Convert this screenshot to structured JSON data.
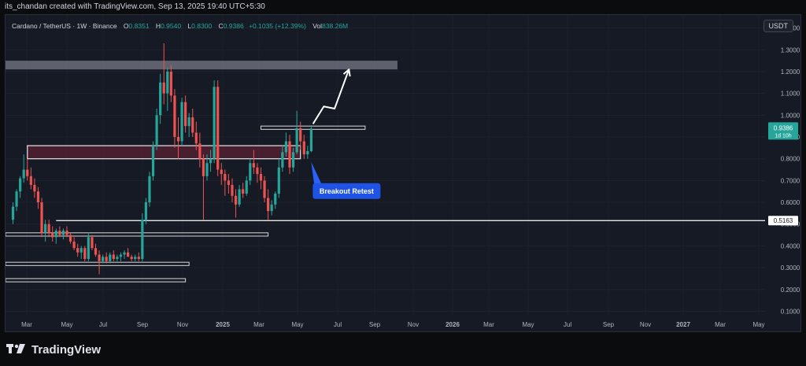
{
  "credit": "its_chandan created with TradingView.com, Sep 13, 2025 19:40 UTC+5:30",
  "legend": {
    "symbol": "Cardano / TetherUS · 1W · Binance",
    "open_label": "O",
    "open": "0.8351",
    "high_label": "H",
    "high": "0.9540",
    "low_label": "L",
    "low": "0.8300",
    "close_label": "C",
    "close": "0.9386",
    "change": "+0.1035 (+12.39%)",
    "vol_label": "Vol",
    "vol": "838.26M"
  },
  "currency_button": "USDT",
  "last_price": {
    "value": "0.9386",
    "countdown": "1d 10h"
  },
  "level_label": "0.5163",
  "annotation": "Breakout Retest",
  "footer_brand": "TradingView",
  "colors": {
    "up": "#26a69a",
    "down": "#ef5350",
    "background": "#161a25"
  },
  "chart_data": {
    "type": "candlestick",
    "symbol": "ADA/USDT",
    "y_ticks": [
      "1.4000",
      "1.3000",
      "1.2000",
      "1.1000",
      "1.0000",
      "0.9000",
      "0.8000",
      "0.7000",
      "0.6000",
      "0.5000",
      "0.4000",
      "0.3000",
      "0.2000",
      "0.1000"
    ],
    "x_ticks": [
      "Mar",
      "May",
      "Jul",
      "Sep",
      "Nov",
      "2025",
      "Mar",
      "May",
      "Jul",
      "Sep",
      "Nov",
      "2026",
      "Mar",
      "May",
      "Jul",
      "Sep",
      "Nov",
      "2027",
      "Mar",
      "May"
    ],
    "ylim": [
      0.08,
      1.46
    ],
    "candles": [
      {
        "o": 0.52,
        "h": 0.6,
        "l": 0.5,
        "c": 0.58
      },
      {
        "o": 0.58,
        "h": 0.66,
        "l": 0.56,
        "c": 0.65
      },
      {
        "o": 0.65,
        "h": 0.72,
        "l": 0.62,
        "c": 0.71
      },
      {
        "o": 0.71,
        "h": 0.82,
        "l": 0.69,
        "c": 0.75
      },
      {
        "o": 0.75,
        "h": 0.8,
        "l": 0.7,
        "c": 0.72
      },
      {
        "o": 0.72,
        "h": 0.76,
        "l": 0.66,
        "c": 0.68
      },
      {
        "o": 0.68,
        "h": 0.71,
        "l": 0.62,
        "c": 0.65
      },
      {
        "o": 0.65,
        "h": 0.67,
        "l": 0.57,
        "c": 0.6
      },
      {
        "o": 0.6,
        "h": 0.62,
        "l": 0.44,
        "c": 0.46
      },
      {
        "o": 0.46,
        "h": 0.52,
        "l": 0.42,
        "c": 0.5
      },
      {
        "o": 0.5,
        "h": 0.52,
        "l": 0.44,
        "c": 0.46
      },
      {
        "o": 0.46,
        "h": 0.49,
        "l": 0.42,
        "c": 0.44
      },
      {
        "o": 0.44,
        "h": 0.48,
        "l": 0.41,
        "c": 0.47
      },
      {
        "o": 0.47,
        "h": 0.49,
        "l": 0.44,
        "c": 0.45
      },
      {
        "o": 0.45,
        "h": 0.48,
        "l": 0.43,
        "c": 0.47
      },
      {
        "o": 0.47,
        "h": 0.49,
        "l": 0.44,
        "c": 0.45
      },
      {
        "o": 0.45,
        "h": 0.46,
        "l": 0.41,
        "c": 0.42
      },
      {
        "o": 0.42,
        "h": 0.44,
        "l": 0.38,
        "c": 0.39
      },
      {
        "o": 0.39,
        "h": 0.41,
        "l": 0.35,
        "c": 0.37
      },
      {
        "o": 0.37,
        "h": 0.4,
        "l": 0.34,
        "c": 0.39
      },
      {
        "o": 0.39,
        "h": 0.4,
        "l": 0.33,
        "c": 0.34
      },
      {
        "o": 0.34,
        "h": 0.46,
        "l": 0.33,
        "c": 0.44
      },
      {
        "o": 0.44,
        "h": 0.45,
        "l": 0.38,
        "c": 0.39
      },
      {
        "o": 0.39,
        "h": 0.41,
        "l": 0.35,
        "c": 0.36
      },
      {
        "o": 0.36,
        "h": 0.38,
        "l": 0.27,
        "c": 0.33
      },
      {
        "o": 0.33,
        "h": 0.36,
        "l": 0.32,
        "c": 0.35
      },
      {
        "o": 0.35,
        "h": 0.37,
        "l": 0.32,
        "c": 0.33
      },
      {
        "o": 0.33,
        "h": 0.37,
        "l": 0.32,
        "c": 0.36
      },
      {
        "o": 0.36,
        "h": 0.38,
        "l": 0.33,
        "c": 0.34
      },
      {
        "o": 0.34,
        "h": 0.36,
        "l": 0.33,
        "c": 0.35
      },
      {
        "o": 0.35,
        "h": 0.37,
        "l": 0.33,
        "c": 0.36
      },
      {
        "o": 0.36,
        "h": 0.38,
        "l": 0.34,
        "c": 0.37
      },
      {
        "o": 0.37,
        "h": 0.39,
        "l": 0.35,
        "c": 0.35
      },
      {
        "o": 0.35,
        "h": 0.36,
        "l": 0.33,
        "c": 0.34
      },
      {
        "o": 0.34,
        "h": 0.36,
        "l": 0.33,
        "c": 0.35
      },
      {
        "o": 0.35,
        "h": 0.37,
        "l": 0.33,
        "c": 0.34
      },
      {
        "o": 0.34,
        "h": 0.55,
        "l": 0.33,
        "c": 0.52
      },
      {
        "o": 0.52,
        "h": 0.62,
        "l": 0.5,
        "c": 0.6
      },
      {
        "o": 0.6,
        "h": 0.74,
        "l": 0.58,
        "c": 0.72
      },
      {
        "o": 0.72,
        "h": 0.88,
        "l": 0.7,
        "c": 0.86
      },
      {
        "o": 0.86,
        "h": 1.03,
        "l": 0.84,
        "c": 1.0
      },
      {
        "o": 1.0,
        "h": 1.19,
        "l": 0.96,
        "c": 1.15
      },
      {
        "o": 1.15,
        "h": 1.33,
        "l": 1.05,
        "c": 1.1
      },
      {
        "o": 1.1,
        "h": 1.22,
        "l": 1.02,
        "c": 1.2
      },
      {
        "o": 1.2,
        "h": 1.23,
        "l": 1.06,
        "c": 1.09
      },
      {
        "o": 1.09,
        "h": 1.12,
        "l": 0.85,
        "c": 0.9
      },
      {
        "o": 0.9,
        "h": 0.99,
        "l": 0.8,
        "c": 0.88
      },
      {
        "o": 0.88,
        "h": 1.08,
        "l": 0.86,
        "c": 1.06
      },
      {
        "o": 1.06,
        "h": 1.09,
        "l": 0.92,
        "c": 0.95
      },
      {
        "o": 0.95,
        "h": 1.01,
        "l": 0.9,
        "c": 0.99
      },
      {
        "o": 0.99,
        "h": 1.03,
        "l": 0.9,
        "c": 0.92
      },
      {
        "o": 0.92,
        "h": 0.97,
        "l": 0.84,
        "c": 0.87
      },
      {
        "o": 0.87,
        "h": 0.92,
        "l": 0.76,
        "c": 0.8
      },
      {
        "o": 0.8,
        "h": 0.82,
        "l": 0.52,
        "c": 0.72
      },
      {
        "o": 0.72,
        "h": 0.82,
        "l": 0.7,
        "c": 0.78
      },
      {
        "o": 0.78,
        "h": 0.84,
        "l": 0.74,
        "c": 0.8
      },
      {
        "o": 0.8,
        "h": 1.16,
        "l": 0.78,
        "c": 1.13
      },
      {
        "o": 1.13,
        "h": 1.16,
        "l": 0.72,
        "c": 0.75
      },
      {
        "o": 0.75,
        "h": 0.78,
        "l": 0.68,
        "c": 0.73
      },
      {
        "o": 0.73,
        "h": 0.75,
        "l": 0.63,
        "c": 0.7
      },
      {
        "o": 0.7,
        "h": 0.73,
        "l": 0.64,
        "c": 0.68
      },
      {
        "o": 0.68,
        "h": 0.71,
        "l": 0.6,
        "c": 0.63
      },
      {
        "o": 0.63,
        "h": 0.66,
        "l": 0.53,
        "c": 0.59
      },
      {
        "o": 0.59,
        "h": 0.68,
        "l": 0.58,
        "c": 0.66
      },
      {
        "o": 0.66,
        "h": 0.69,
        "l": 0.62,
        "c": 0.64
      },
      {
        "o": 0.64,
        "h": 0.72,
        "l": 0.63,
        "c": 0.7
      },
      {
        "o": 0.7,
        "h": 0.8,
        "l": 0.68,
        "c": 0.78
      },
      {
        "o": 0.78,
        "h": 0.84,
        "l": 0.73,
        "c": 0.76
      },
      {
        "o": 0.76,
        "h": 0.78,
        "l": 0.69,
        "c": 0.73
      },
      {
        "o": 0.73,
        "h": 0.76,
        "l": 0.66,
        "c": 0.7
      },
      {
        "o": 0.7,
        "h": 0.72,
        "l": 0.6,
        "c": 0.62
      },
      {
        "o": 0.62,
        "h": 0.66,
        "l": 0.52,
        "c": 0.56
      },
      {
        "o": 0.56,
        "h": 0.61,
        "l": 0.54,
        "c": 0.59
      },
      {
        "o": 0.59,
        "h": 0.65,
        "l": 0.57,
        "c": 0.64
      },
      {
        "o": 0.64,
        "h": 0.8,
        "l": 0.62,
        "c": 0.76
      },
      {
        "o": 0.76,
        "h": 0.86,
        "l": 0.74,
        "c": 0.83
      },
      {
        "o": 0.83,
        "h": 0.92,
        "l": 0.81,
        "c": 0.88
      },
      {
        "o": 0.88,
        "h": 0.91,
        "l": 0.73,
        "c": 0.76
      },
      {
        "o": 0.76,
        "h": 0.85,
        "l": 0.74,
        "c": 0.83
      },
      {
        "o": 0.83,
        "h": 1.02,
        "l": 0.82,
        "c": 0.94
      },
      {
        "o": 0.94,
        "h": 0.97,
        "l": 0.84,
        "c": 0.88
      },
      {
        "o": 0.88,
        "h": 0.91,
        "l": 0.8,
        "c": 0.82
      },
      {
        "o": 0.82,
        "h": 0.86,
        "l": 0.8,
        "c": 0.835
      },
      {
        "o": 0.8351,
        "h": 0.954,
        "l": 0.83,
        "c": 0.9386
      }
    ],
    "zones": [
      {
        "y": [
          1.21,
          1.25
        ],
        "x": [
          0,
          107
        ],
        "style": "gray-fill"
      },
      {
        "y": [
          0.8,
          0.86
        ],
        "x": [
          4,
          80
        ],
        "style": "maroon-box"
      },
      {
        "y": [
          0.935,
          0.95
        ],
        "x": [
          69,
          98
        ],
        "style": "outline"
      },
      {
        "y": [
          0.445,
          0.46
        ],
        "x": [
          0,
          71
        ],
        "style": "outline"
      },
      {
        "y": [
          0.31,
          0.325
        ],
        "x": [
          0,
          49
        ],
        "style": "outline"
      },
      {
        "y": [
          0.235,
          0.25
        ],
        "x": [
          0,
          48
        ],
        "style": "outline"
      }
    ],
    "horizontal_level": 0.5163,
    "projection_arrow": [
      [
        83.5,
        0.96
      ],
      [
        86.5,
        1.04
      ],
      [
        89.5,
        1.03
      ],
      [
        93.5,
        1.21
      ]
    ]
  }
}
